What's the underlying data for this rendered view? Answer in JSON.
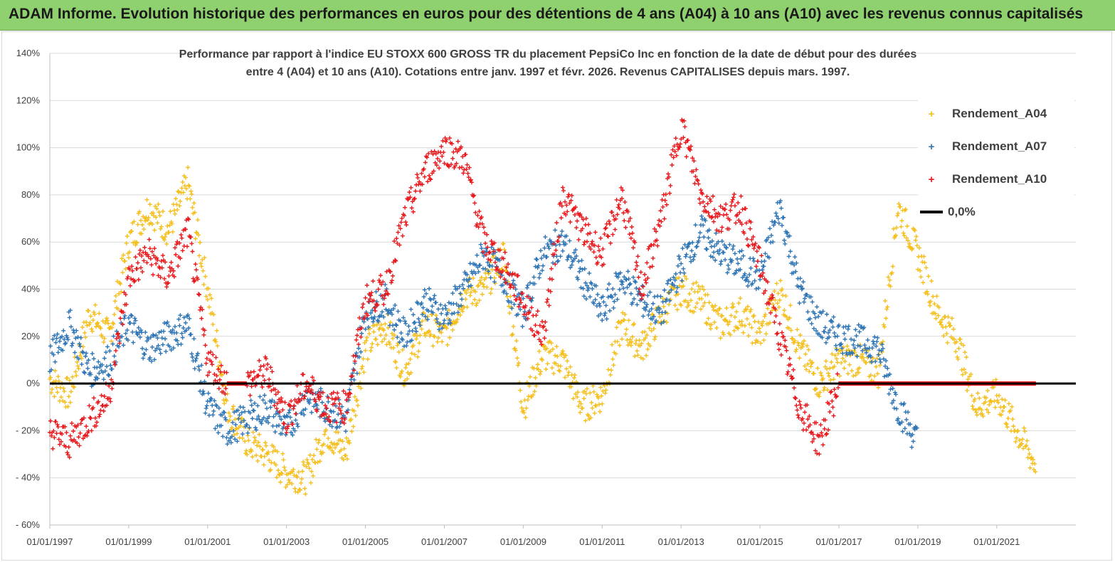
{
  "banner": {
    "title": "ADAM Informe. Evolution historique des performances en euros pour des détentions de 4 ans (A04) à 10 ans (A10) avec les revenus connus capitalisés"
  },
  "chart_data": {
    "type": "scatter",
    "title_line1": "Performance par rapport à l'indice EU STOXX 600 GROSS TR  du placement PepsiCo Inc en fonction de la date de début pour des durées",
    "title_line2": "entre 4 (A04) et 10 ans (A10).  Cotations entre janv. 1997 et févr. 2026. Revenus CAPITALISES depuis mars. 1997.",
    "xlabel": "",
    "ylabel": "",
    "x_range": [
      "1997-01-01",
      "2022-01-01"
    ],
    "y_range": [
      -60,
      140
    ],
    "y_ticks": [
      -60,
      -40,
      -20,
      0,
      20,
      40,
      60,
      80,
      100,
      120,
      140
    ],
    "y_tick_labels": [
      "- 60%",
      "- 40%",
      "- 20%",
      "0%",
      "20%",
      "40%",
      "60%",
      "80%",
      "100%",
      "120%",
      "140%"
    ],
    "x_tick_labels": [
      "01/01/1997",
      "01/01/1999",
      "01/01/2001",
      "01/01/2003",
      "01/01/2005",
      "01/01/2007",
      "01/01/2009",
      "01/01/2011",
      "01/01/2013",
      "01/01/2015",
      "01/01/2017",
      "01/01/2019",
      "01/01/2021"
    ],
    "grid": "horizontal",
    "legend_position": "top-right",
    "reference_line": {
      "name": "0,0%",
      "value": 0,
      "color": "#000000"
    },
    "series": [
      {
        "name": "Rendement_A04",
        "color": "#f5bf1e",
        "x": [
          "1997-01",
          "1997-07",
          "1998-01",
          "1998-07",
          "1999-01",
          "1999-07",
          "2000-01",
          "2000-07",
          "2001-01",
          "2001-07",
          "2002-01",
          "2002-07",
          "2003-01",
          "2003-07",
          "2004-01",
          "2004-07",
          "2005-01",
          "2005-07",
          "2006-01",
          "2006-07",
          "2007-01",
          "2007-07",
          "2008-01",
          "2008-07",
          "2009-01",
          "2009-07",
          "2010-01",
          "2010-07",
          "2011-01",
          "2011-07",
          "2012-01",
          "2012-07",
          "2013-01",
          "2013-07",
          "2014-01",
          "2014-07",
          "2015-01",
          "2015-07",
          "2016-01",
          "2016-07",
          "2017-01",
          "2017-07",
          "2018-01",
          "2018-07",
          "2019-01",
          "2019-07",
          "2020-01",
          "2020-07",
          "2021-01",
          "2021-07",
          "2022-01"
        ],
        "y": [
          2,
          -5,
          30,
          20,
          60,
          75,
          65,
          85,
          40,
          -10,
          -25,
          -30,
          -38,
          -40,
          -20,
          -30,
          15,
          25,
          5,
          25,
          20,
          38,
          40,
          55,
          -10,
          12,
          10,
          -10,
          -5,
          25,
          15,
          30,
          40,
          35,
          25,
          30,
          20,
          40,
          15,
          0,
          10,
          10,
          5,
          75,
          55,
          30,
          18,
          -10,
          -5,
          -20,
          -35
        ]
      },
      {
        "name": "Rendement_A07",
        "color": "#2e75b6",
        "x": [
          "1997-01",
          "1997-07",
          "1998-01",
          "1998-07",
          "1999-01",
          "1999-07",
          "2000-01",
          "2000-07",
          "2001-01",
          "2001-07",
          "2002-01",
          "2002-07",
          "2003-01",
          "2003-07",
          "2004-01",
          "2004-07",
          "2005-01",
          "2005-07",
          "2006-01",
          "2006-07",
          "2007-01",
          "2007-07",
          "2008-01",
          "2008-07",
          "2009-01",
          "2009-07",
          "2010-01",
          "2010-07",
          "2011-01",
          "2011-07",
          "2012-01",
          "2012-07",
          "2013-01",
          "2013-07",
          "2014-01",
          "2014-07",
          "2015-01",
          "2015-07",
          "2016-01",
          "2016-07",
          "2017-01",
          "2017-07",
          "2018-01",
          "2018-07",
          "2019-01"
        ],
        "y": [
          10,
          25,
          5,
          10,
          25,
          15,
          20,
          25,
          -10,
          -20,
          -15,
          -10,
          -20,
          -5,
          -10,
          -15,
          30,
          35,
          20,
          35,
          28,
          40,
          55,
          45,
          30,
          55,
          60,
          45,
          30,
          45,
          35,
          30,
          50,
          65,
          55,
          50,
          45,
          75,
          40,
          25,
          20,
          18,
          15,
          -10,
          -25
        ]
      },
      {
        "name": "Rendement_A10",
        "color": "#e8191c",
        "x": [
          "1997-01",
          "1997-07",
          "1998-01",
          "1998-07",
          "1999-01",
          "1999-07",
          "2000-01",
          "2000-07",
          "2001-01",
          "2001-07",
          "2002-01",
          "2002-07",
          "2003-01",
          "2003-07",
          "2004-01",
          "2004-07",
          "2005-01",
          "2005-07",
          "2006-01",
          "2006-07",
          "2007-01",
          "2007-07",
          "2008-01",
          "2008-07",
          "2009-01",
          "2009-07",
          "2010-01",
          "2010-07",
          "2011-01",
          "2011-07",
          "2012-01",
          "2012-07",
          "2013-01",
          "2013-07",
          "2014-01",
          "2014-07",
          "2015-01",
          "2015-07",
          "2016-01",
          "2016-07",
          "2017-01",
          "2017-07",
          "2018-01",
          "2018-07",
          "2019-01",
          "2019-07",
          "2020-01",
          "2020-07",
          "2021-01",
          "2021-07",
          "2022-01"
        ],
        "y": [
          -20,
          -25,
          -15,
          -5,
          45,
          55,
          45,
          65,
          10,
          0,
          0,
          5,
          -15,
          0,
          -10,
          -10,
          35,
          40,
          70,
          90,
          100,
          95,
          60,
          50,
          35,
          20,
          80,
          65,
          55,
          80,
          40,
          70,
          110,
          80,
          70,
          75,
          50,
          20,
          -10,
          -25,
          0,
          0,
          0,
          0,
          0,
          0,
          0,
          0,
          0,
          0,
          0
        ]
      }
    ]
  },
  "legend": {
    "entries": [
      {
        "label": "Rendement_A04",
        "marker": "+",
        "color": "#f5bf1e"
      },
      {
        "label": "Rendement_A07",
        "marker": "+",
        "color": "#2e75b6"
      },
      {
        "label": "Rendement_A10",
        "marker": "+",
        "color": "#e8191c"
      },
      {
        "label": "0,0%",
        "marker": "line",
        "color": "#000000"
      }
    ]
  }
}
